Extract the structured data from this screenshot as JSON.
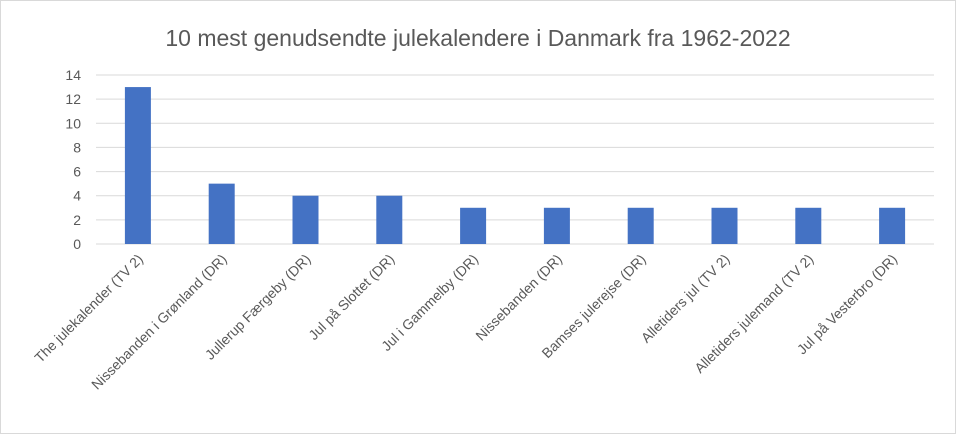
{
  "chart_data": {
    "type": "bar",
    "title": "10 mest genudsendte julekalendere i Danmark fra 1962-2022",
    "categories": [
      "The julekalender (TV 2)",
      "Nissebanden i Grønland (DR)",
      "Jullerup Færgeby (DR)",
      "Jul på Slottet (DR)",
      "Jul i Gammelby (DR)",
      "Nissebanden (DR)",
      "Bamses julerejse (DR)",
      "Alletiders jul (TV 2)",
      "Alletiders julemand (TV 2)",
      "Jul på Vesterbro (DR)"
    ],
    "values": [
      13,
      5,
      4,
      4,
      3,
      3,
      3,
      3,
      3,
      3
    ],
    "yticks": [
      "0",
      "2",
      "4",
      "6",
      "8",
      "10",
      "12",
      "14"
    ],
    "ylim": [
      0,
      14
    ],
    "xlabel": "",
    "ylabel": "",
    "grid": true,
    "legend": "none",
    "bar_color": "#4472C4"
  }
}
